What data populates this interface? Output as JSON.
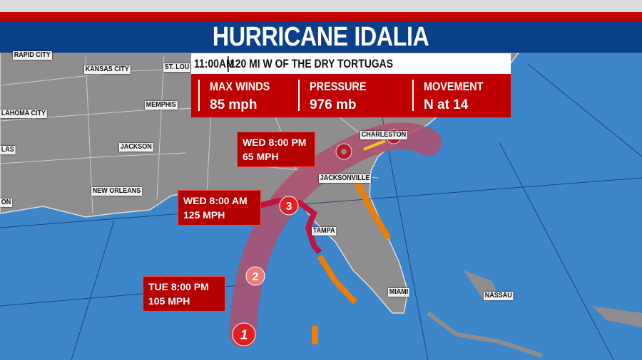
{
  "title": "HURRICANE IDALIA",
  "advisory": {
    "time": "11:00AM",
    "location": "120 MI W OF THE DRY TORTUGAS"
  },
  "stats": [
    {
      "label": "MAX WINDS",
      "value": "85 mph"
    },
    {
      "label": "PRESSURE",
      "value": "976 mb"
    },
    {
      "label": "MOVEMENT",
      "value": "N at 14"
    }
  ],
  "cities": [
    "RAPID CITY",
    "KANSAS CITY",
    "ST. LOU",
    "MEMPHIS",
    "LAHOMA CITY",
    "JACKSON",
    "LAS",
    "NEW ORLEANS",
    "ON",
    "CHARLESTON",
    "JACKSONVILLE",
    "TAMPA",
    "MIAMI",
    "NASSAU"
  ],
  "forecast": [
    {
      "time": "WED 8:00 PM",
      "wind": "65 MPH",
      "category": ""
    },
    {
      "time": "WED 8:00 AM",
      "wind": "125 MPH",
      "category": "3"
    },
    {
      "time": "TUE 8:00 PM",
      "wind": "105 MPH",
      "category": "2"
    }
  ],
  "current_category": "1",
  "colors": {
    "land": "#8e8e8e",
    "ocean": "#3d86c9",
    "banner_blue": "#0a3f8a",
    "banner_red": "#c00000",
    "cone": "#b0506e",
    "hurricane_warning": "#c0143c",
    "tropical_storm_warning": "#f07c00",
    "storm_watch": "#f2c230"
  }
}
